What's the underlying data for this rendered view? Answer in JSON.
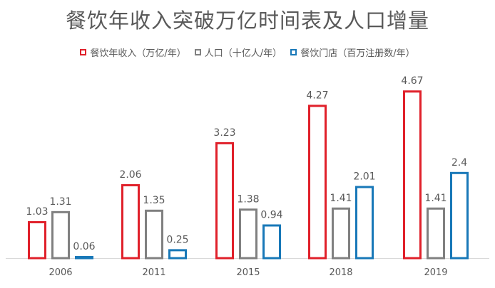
{
  "chart_data": {
    "type": "bar",
    "title": "餐饮年收入突破万亿时间表及人口增量",
    "categories": [
      "2006",
      "2011",
      "2015",
      "2018",
      "2019"
    ],
    "series": [
      {
        "name": "餐饮年收入（万亿/年）",
        "color": "#E0202A",
        "values": [
          1.03,
          2.06,
          3.23,
          4.27,
          4.67
        ],
        "labels": [
          "1.03",
          "2.06",
          "3.23",
          "4.27",
          "4.67"
        ]
      },
      {
        "name": "人口（十亿人/年）",
        "color": "#808080",
        "values": [
          1.31,
          1.35,
          1.38,
          1.41,
          1.41
        ],
        "labels": [
          "1.31",
          "1.35",
          "1.38",
          "1.41",
          "1.41"
        ]
      },
      {
        "name": "餐饮门店（百万注册数/年）",
        "color": "#1878B8",
        "values": [
          0.06,
          0.25,
          0.94,
          2.01,
          2.4
        ],
        "labels": [
          "0.06",
          "0.25",
          "0.94",
          "2.01",
          "2.4"
        ]
      }
    ],
    "ylim": [
      0,
      5
    ],
    "grid": false,
    "legend_position": "top"
  }
}
